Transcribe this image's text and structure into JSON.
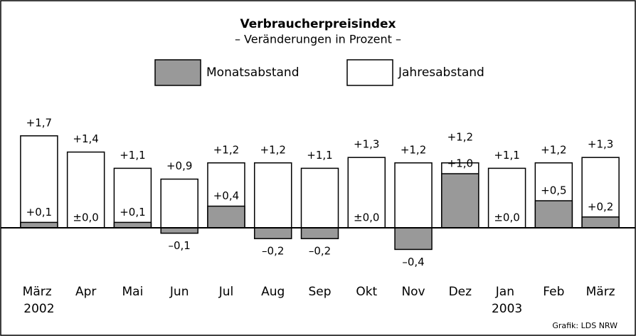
{
  "chart_data": {
    "type": "bar",
    "title": "Verbraucherpreisindex",
    "subtitle": "– Veränderungen in Prozent –",
    "source": "Grafik: LDS NRW",
    "categories": [
      "März 2002",
      "Apr",
      "Mai",
      "Jun",
      "Jul",
      "Aug",
      "Sep",
      "Okt",
      "Nov",
      "Dez",
      "Jan 2003",
      "Feb",
      "März"
    ],
    "series": [
      {
        "name": "Jahresabstand",
        "color": "#ffffff",
        "values": [
          1.7,
          1.4,
          1.1,
          0.9,
          1.2,
          1.2,
          1.1,
          1.3,
          1.2,
          1.2,
          1.1,
          1.2,
          1.3
        ],
        "value_labels": [
          "+1,7",
          "+1,4",
          "+1,1",
          "+0,9",
          "+1,2",
          "+1,2",
          "+1,1",
          "+1,3",
          "+1,2",
          "+1,2",
          "+1,1",
          "+1,2",
          "+1,3"
        ]
      },
      {
        "name": "Monatsabstand",
        "color": "#999999",
        "values": [
          0.1,
          0.0,
          0.1,
          -0.1,
          0.4,
          -0.2,
          -0.2,
          0.0,
          -0.4,
          1.0,
          0.0,
          0.5,
          0.2
        ],
        "value_labels": [
          "+0,1",
          "±0,0",
          "+0,1",
          "–0,1",
          "+0,4",
          "–0,2",
          "–0,2",
          "±0,0",
          "–0,4",
          "+1,0",
          "±0,0",
          "+0,5",
          "+0,2"
        ]
      }
    ],
    "ylim": [
      -1,
      2
    ]
  }
}
